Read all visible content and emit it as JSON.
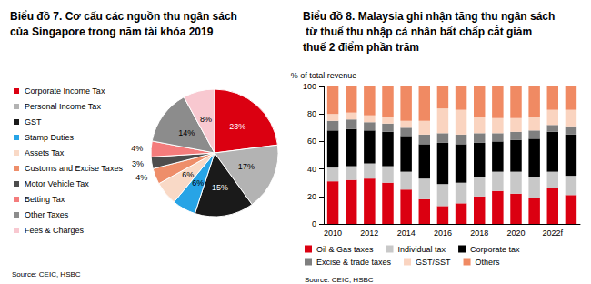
{
  "chart_data": [
    {
      "type": "pie",
      "title": "Biểu đồ 7. Cơ cấu các nguồn thu ngân sách của Singapore trong năm tài khóa 2019",
      "source": "Source: CEIC, HSBC",
      "categories": [
        "Corporate Income Tax",
        "Personal Income Tax",
        "GST",
        "Stamp Duties",
        "Assets Tax",
        "Customs and Excise Taxes",
        "Motor Vehicle Tax",
        "Betting Tax",
        "Other Taxes",
        "Fees & Charges"
      ],
      "values": [
        23,
        17,
        15,
        6,
        6,
        4,
        3,
        4,
        14,
        8
      ],
      "value_labels": [
        "23%",
        "17%",
        "15%",
        "6%",
        "6%",
        "4%",
        "3%",
        "4%",
        "14%",
        "8%"
      ],
      "colors": [
        "#db0011",
        "#b3b3b3",
        "#1a1a1a",
        "#27a4e6",
        "#f9d9c6",
        "#ee8e6a",
        "#4d4d4d",
        "#f47c7c",
        "#8c8c8c",
        "#f8c8d0"
      ],
      "data_labels": true,
      "legend": "left"
    },
    {
      "type": "bar",
      "title": "Biểu đồ 8. Malaysia ghi nhận tăng thu ngân sách từ thuế thu nhập cá nhân bất chấp cắt giảm thuế 2 điểm phần trăm",
      "y_label": "% of total revenue",
      "source": "Source: CEIC, HSBC",
      "categories": [
        "2010",
        null,
        "2012",
        null,
        "2014",
        null,
        "2016",
        null,
        "2018",
        null,
        "2020",
        null,
        "2022f",
        null
      ],
      "series": [
        {
          "name": "Oil & Gas taxes",
          "color": "#db0011",
          "values": [
            31,
            32,
            33,
            30,
            25,
            18,
            13,
            15,
            20,
            24,
            22,
            19,
            26,
            21
          ]
        },
        {
          "name": "Individual tax",
          "color": "#c8c8c8",
          "values": [
            10,
            10,
            11,
            12,
            13,
            15,
            16,
            15,
            14,
            14,
            16,
            15,
            12,
            14
          ]
        },
        {
          "name": "Corporate tax",
          "color": "#000000",
          "values": [
            27,
            27,
            24,
            25,
            26,
            25,
            30,
            28,
            25,
            22,
            23,
            28,
            29,
            30
          ]
        },
        {
          "name": "Excise & trade taxes",
          "color": "#7f7f7f",
          "values": [
            7,
            7,
            6,
            6,
            6,
            7,
            7,
            7,
            7,
            6,
            6,
            6,
            5,
            6
          ]
        },
        {
          "name": "GST/SST",
          "color": "#fad4c0",
          "values": [
            5,
            5,
            5,
            5,
            5,
            10,
            18,
            18,
            12,
            11,
            10,
            10,
            11,
            12
          ]
        },
        {
          "name": "Others",
          "color": "#f08a63",
          "values": [
            20,
            19,
            21,
            22,
            25,
            25,
            16,
            17,
            22,
            23,
            23,
            22,
            17,
            17
          ]
        }
      ],
      "ylim": [
        0,
        100
      ],
      "yticks": [
        0,
        20,
        40,
        60,
        80,
        100
      ],
      "stacked": true,
      "grid": false,
      "legend": "bottom"
    }
  ]
}
